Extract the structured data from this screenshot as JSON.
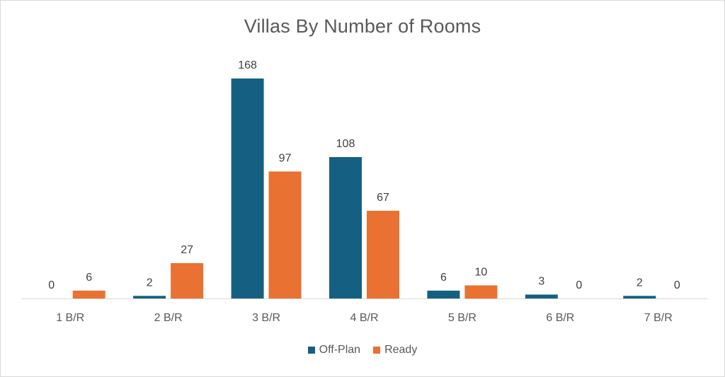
{
  "chart_data": {
    "type": "bar",
    "title": "Villas By Number of Rooms",
    "categories": [
      "1 B/R",
      "2 B/R",
      "3 B/R",
      "4 B/R",
      "5 B/R",
      "6 B/R",
      "7 B/R"
    ],
    "series": [
      {
        "name": "Off-Plan",
        "color": "#156082",
        "values": [
          0,
          2,
          168,
          108,
          6,
          3,
          2
        ]
      },
      {
        "name": "Ready",
        "color": "#E97132",
        "values": [
          6,
          27,
          97,
          67,
          10,
          0,
          0
        ]
      }
    ],
    "ylim": [
      0,
      168
    ],
    "grid": false,
    "legend_position": "bottom",
    "data_labels": true
  }
}
